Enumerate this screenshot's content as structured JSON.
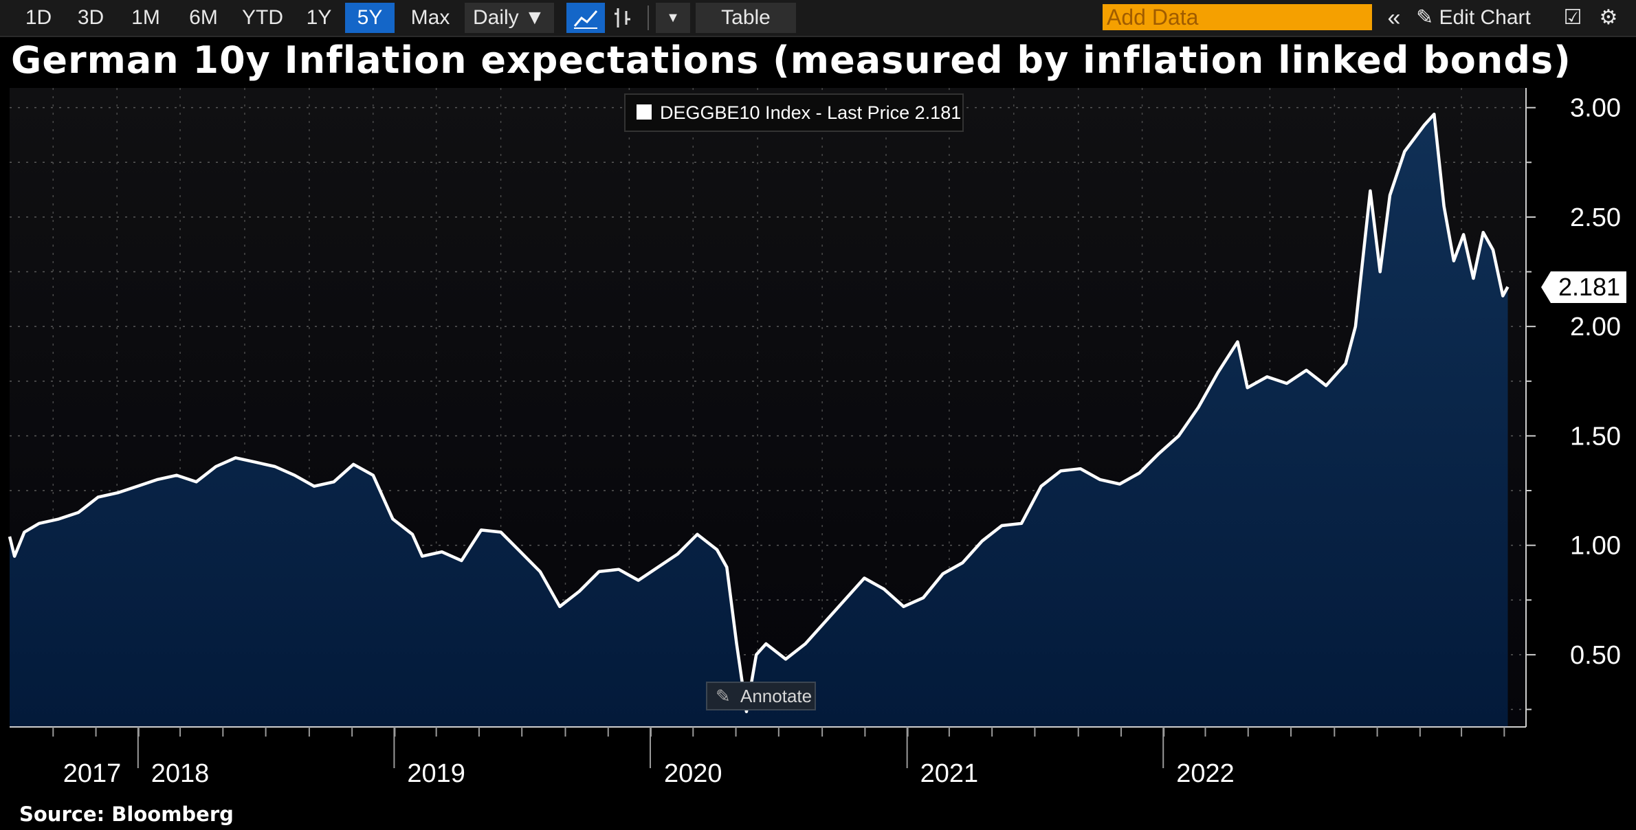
{
  "toolbar": {
    "ranges": [
      "1D",
      "3D",
      "1M",
      "6M",
      "YTD",
      "1Y",
      "5Y",
      "Max"
    ],
    "active_range": "5Y",
    "frequency": "Daily",
    "table_label": "Table",
    "add_data_placeholder": "Add Data",
    "edit_chart_label": "Edit Chart",
    "icons": [
      "line-chart-icon",
      "bar-chart-icon",
      "dropdown-arrow-icon",
      "collapse-icon",
      "pencil-icon",
      "edit-icon",
      "gear-icon"
    ]
  },
  "title": "German 10y Inflation expectations (measured by inflation linked bonds)",
  "legend": {
    "text": "DEGGBE10 Index - Last Price 2.181"
  },
  "annotate_label": "Annotate",
  "source": "Source: Bloomberg",
  "colors": {
    "background": "#000000",
    "line": "#ffffff",
    "area_top": "#0f2846",
    "area_bottom": "#021430",
    "toolbar_active": "#1466c8",
    "add_data": "#f5a000"
  },
  "chart_data": {
    "type": "area",
    "title": "German 10y Inflation expectations (measured by inflation linked bonds)",
    "series": [
      {
        "name": "DEGGBE10 Index - Last Price",
        "last_value": 2.181,
        "points": [
          [
            "2017-07-01",
            1.04
          ],
          [
            "2017-07-08",
            0.95
          ],
          [
            "2017-07-22",
            1.06
          ],
          [
            "2017-08-12",
            1.1
          ],
          [
            "2017-09-09",
            1.12
          ],
          [
            "2017-10-07",
            1.15
          ],
          [
            "2017-11-04",
            1.22
          ],
          [
            "2017-12-02",
            1.24
          ],
          [
            "2017-12-30",
            1.27
          ],
          [
            "2018-01-27",
            1.3
          ],
          [
            "2018-02-24",
            1.32
          ],
          [
            "2018-03-24",
            1.29
          ],
          [
            "2018-04-21",
            1.36
          ],
          [
            "2018-05-19",
            1.4
          ],
          [
            "2018-06-16",
            1.38
          ],
          [
            "2018-07-14",
            1.36
          ],
          [
            "2018-08-11",
            1.32
          ],
          [
            "2018-09-08",
            1.27
          ],
          [
            "2018-10-06",
            1.29
          ],
          [
            "2018-11-03",
            1.37
          ],
          [
            "2018-12-01",
            1.32
          ],
          [
            "2018-12-29",
            1.12
          ],
          [
            "2019-01-26",
            1.05
          ],
          [
            "2019-02-09",
            0.95
          ],
          [
            "2019-03-09",
            0.97
          ],
          [
            "2019-04-06",
            0.93
          ],
          [
            "2019-05-04",
            1.07
          ],
          [
            "2019-06-01",
            1.06
          ],
          [
            "2019-06-29",
            0.97
          ],
          [
            "2019-07-27",
            0.88
          ],
          [
            "2019-08-24",
            0.72
          ],
          [
            "2019-09-21",
            0.79
          ],
          [
            "2019-10-19",
            0.88
          ],
          [
            "2019-11-16",
            0.89
          ],
          [
            "2019-12-14",
            0.84
          ],
          [
            "2020-01-11",
            0.9
          ],
          [
            "2020-02-08",
            0.96
          ],
          [
            "2020-03-07",
            1.05
          ],
          [
            "2020-04-04",
            0.98
          ],
          [
            "2020-04-18",
            0.9
          ],
          [
            "2020-05-02",
            0.55
          ],
          [
            "2020-05-16",
            0.24
          ],
          [
            "2020-05-30",
            0.5
          ],
          [
            "2020-06-13",
            0.55
          ],
          [
            "2020-07-11",
            0.48
          ],
          [
            "2020-08-08",
            0.55
          ],
          [
            "2020-09-05",
            0.65
          ],
          [
            "2020-10-03",
            0.75
          ],
          [
            "2020-10-31",
            0.85
          ],
          [
            "2020-11-28",
            0.8
          ],
          [
            "2020-12-26",
            0.72
          ],
          [
            "2021-01-23",
            0.76
          ],
          [
            "2021-02-20",
            0.87
          ],
          [
            "2021-03-20",
            0.92
          ],
          [
            "2021-04-17",
            1.02
          ],
          [
            "2021-05-15",
            1.09
          ],
          [
            "2021-06-12",
            1.1
          ],
          [
            "2021-07-10",
            1.27
          ],
          [
            "2021-08-07",
            1.34
          ],
          [
            "2021-09-04",
            1.35
          ],
          [
            "2021-10-02",
            1.3
          ],
          [
            "2021-10-30",
            1.28
          ],
          [
            "2021-11-27",
            1.33
          ],
          [
            "2021-12-25",
            1.42
          ],
          [
            "2022-01-22",
            1.5
          ],
          [
            "2022-02-19",
            1.63
          ],
          [
            "2022-03-19",
            1.79
          ],
          [
            "2022-04-16",
            1.93
          ],
          [
            "2022-04-30",
            1.72
          ],
          [
            "2022-05-28",
            1.77
          ],
          [
            "2022-06-25",
            1.74
          ],
          [
            "2022-07-23",
            1.8
          ],
          [
            "2022-08-20",
            1.73
          ],
          [
            "2022-09-17",
            1.83
          ],
          [
            "2022-10-01",
            2.0
          ],
          [
            "2022-10-22",
            2.62
          ],
          [
            "2022-11-05",
            2.25
          ],
          [
            "2022-11-19",
            2.6
          ],
          [
            "2022-12-10",
            2.8
          ],
          [
            "2023-01-07",
            2.92
          ],
          [
            "2023-01-21",
            2.97
          ],
          [
            "2023-02-04",
            2.55
          ],
          [
            "2023-02-18",
            2.3
          ],
          [
            "2023-03-04",
            2.42
          ],
          [
            "2023-03-18",
            2.22
          ],
          [
            "2023-04-01",
            2.43
          ],
          [
            "2023-04-15",
            2.35
          ],
          [
            "2023-04-29",
            2.14
          ],
          [
            "2023-05-06",
            2.181
          ]
        ]
      }
    ],
    "x_ticks": [
      "2017",
      "2018",
      "2019",
      "2020",
      "2021",
      "2022"
    ],
    "x_tick_positions": [
      "2017-07-01",
      "2018-03-01",
      "2019-03-01",
      "2020-03-01",
      "2021-03-01",
      "2022-03-01"
    ],
    "y_ticks": [
      "0.50",
      "1.00",
      "1.50",
      "2.00",
      "2.50",
      "3.00"
    ],
    "ylim": [
      0.17,
      3.09
    ],
    "xlim": [
      "2017-07-01",
      "2023-06-01"
    ],
    "grid": true,
    "y_axis_side": "right"
  }
}
